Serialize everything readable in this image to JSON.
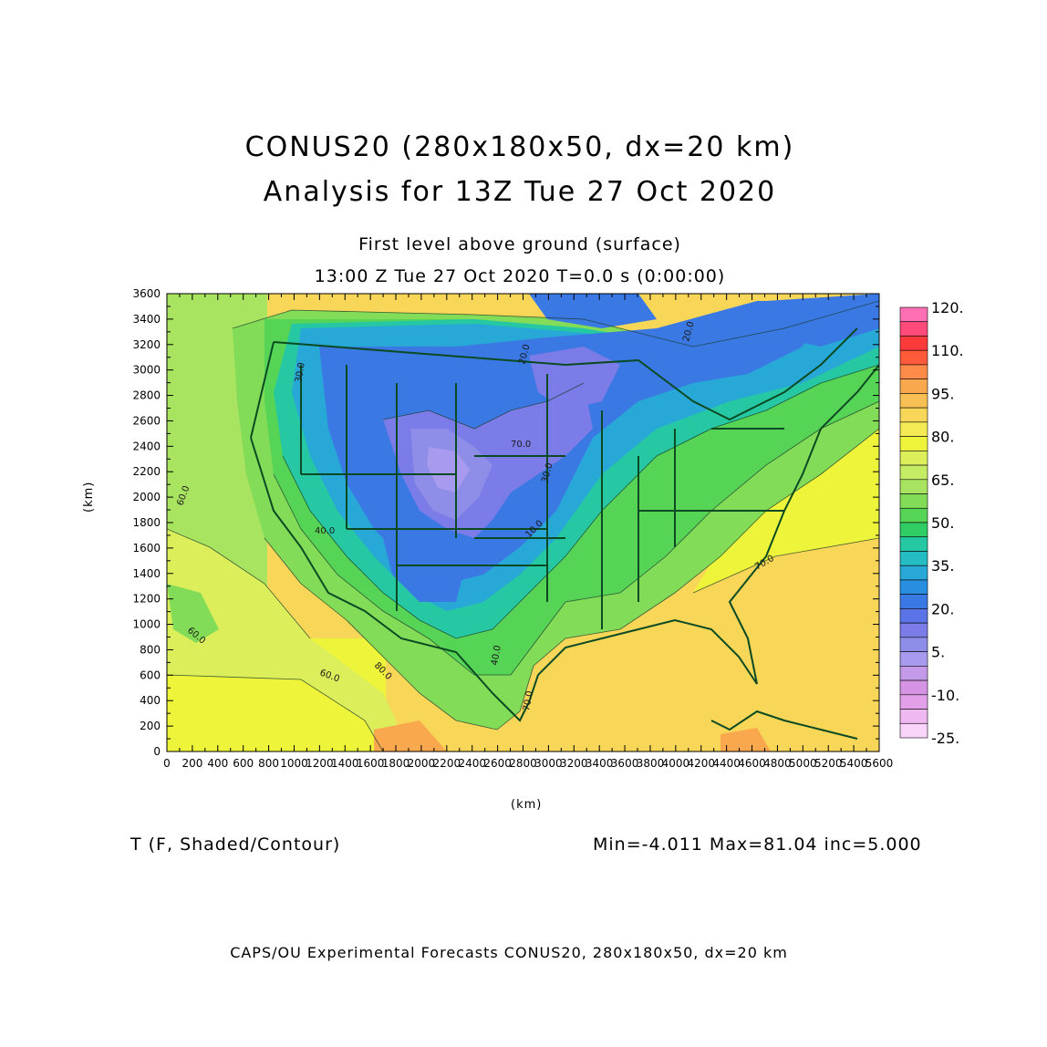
{
  "title": {
    "line1": "CONUS20 (280x180x50, dx=20 km)",
    "line2": "Analysis for 13Z Tue 27 Oct 2020"
  },
  "subtitle": {
    "line1": "First level above ground (surface)",
    "line2": "13:00 Z Tue 27 Oct 2020    T=0.0 s (0:00:00)"
  },
  "axes": {
    "x_label": "(km)",
    "y_label": "(km)",
    "x_ticks": [
      "0",
      "200",
      "400",
      "600",
      "800",
      "1000",
      "1200",
      "1400",
      "1600",
      "1800",
      "2000",
      "2200",
      "2400",
      "2600",
      "2800",
      "3000",
      "3200",
      "3400",
      "3600",
      "3800",
      "4000",
      "4200",
      "4400",
      "4600",
      "4800",
      "5000",
      "5200",
      "5400",
      "5600"
    ],
    "y_ticks": [
      "0",
      "200",
      "400",
      "600",
      "800",
      "1000",
      "1200",
      "1400",
      "1600",
      "1800",
      "2000",
      "2200",
      "2400",
      "2600",
      "2800",
      "3000",
      "3200",
      "3400",
      "3600"
    ]
  },
  "variable": "T (F, Shaded/Contour)",
  "stats": "Min=-4.011 Max=81.04 inc=5.000",
  "footer": "CAPS/OU Experimental Forecasts  CONUS20, 280x180x50, dx=20 km",
  "colorbar": {
    "labels": [
      "120.",
      "110.",
      "95.",
      "80.",
      "65.",
      "50.",
      "35.",
      "20.",
      "5.",
      "-10.",
      "-25."
    ],
    "colors": [
      "#ff6fb4",
      "#ff4a7a",
      "#ff3a3a",
      "#ff5a3a",
      "#ff8a4a",
      "#f9a84e",
      "#f8c054",
      "#f8d658",
      "#f4ea54",
      "#eef43a",
      "#dcef5a",
      "#c4ec64",
      "#a8e460",
      "#82dc58",
      "#56d456",
      "#30cc64",
      "#26c8a4",
      "#26bcc4",
      "#28a8d6",
      "#2a8ee0",
      "#3a78e4",
      "#5a74e8",
      "#7c7ce8",
      "#8e8ee8",
      "#a89aee",
      "#c49ae8",
      "#d694e4",
      "#e2a0e8",
      "#f0b8f0",
      "#fad4fa"
    ]
  },
  "map_labels": [
    "60.0",
    "60.0",
    "70.0",
    "20.0",
    "20.0",
    "30.0",
    "40.0",
    "70.0",
    "20.0",
    "30.0",
    "20.0",
    "60.0",
    "70.0",
    "80.0",
    "40.0",
    "30.0",
    "10.0",
    "40.0"
  ]
}
